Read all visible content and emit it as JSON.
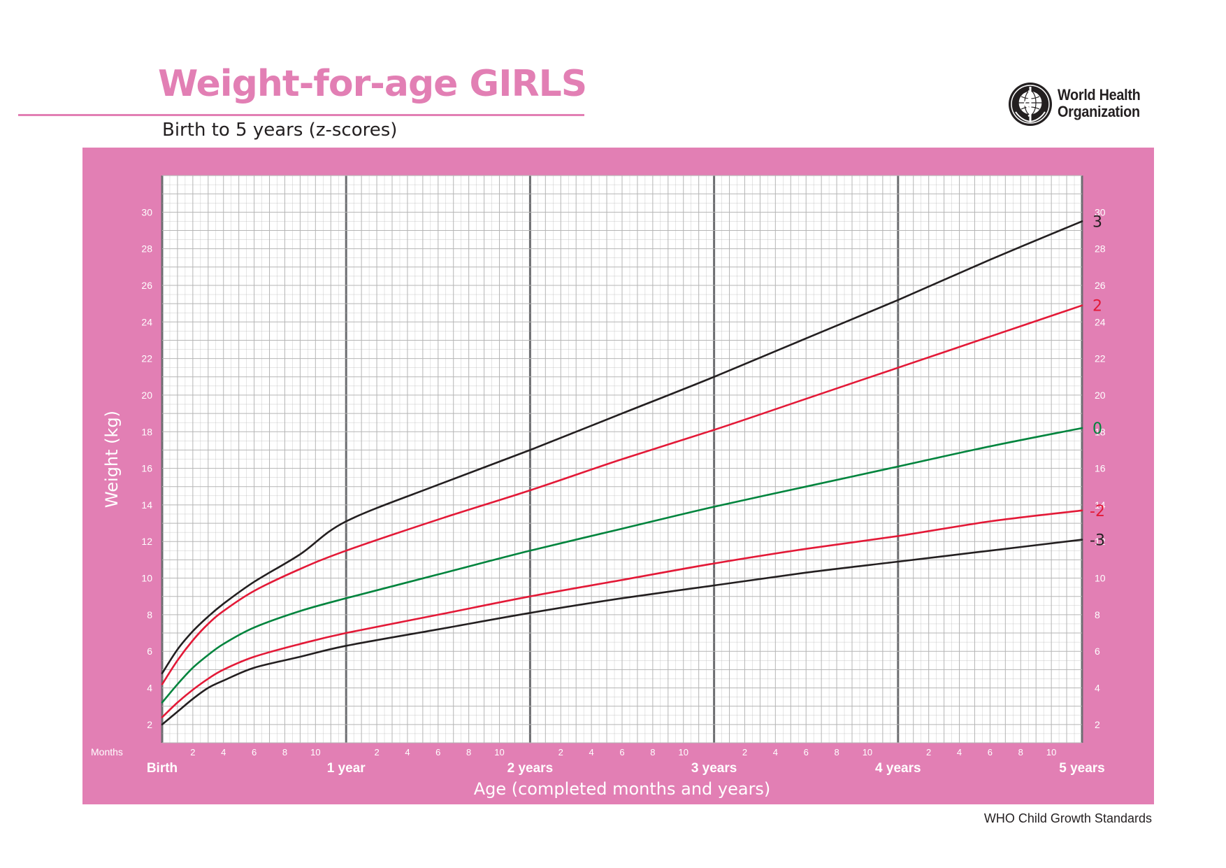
{
  "header": {
    "title": "Weight-for-age GIRLS",
    "subtitle": "Birth to 5 years (z-scores)",
    "organization": "World Health Organization",
    "footer": "WHO Child Growth Standards"
  },
  "colors": {
    "frame": "#e27fb4",
    "brand_pink": "#e27fb4",
    "line_black": "#231f20",
    "line_red": "#e31937",
    "line_green": "#00843d",
    "grid": "#b5b5b5",
    "grid_year": "#6d6e71"
  },
  "icons": {
    "logo": "who-emblem-icon"
  },
  "chart_data": {
    "type": "line",
    "xlabel": "Age (completed months and years)",
    "ylabel": "Weight (kg)",
    "x_unit_label": "Months",
    "xlim": [
      0,
      60
    ],
    "ylim": [
      1,
      32
    ],
    "y_ticks": [
      2,
      4,
      6,
      8,
      10,
      12,
      14,
      16,
      18,
      20,
      22,
      24,
      26,
      28,
      30
    ],
    "x_minor_tick_labels": [
      "2",
      "4",
      "6",
      "8",
      "10"
    ],
    "x_major_labels": [
      "Birth",
      "1 year",
      "2 years",
      "3 years",
      "4 years",
      "5 years"
    ],
    "grid": true,
    "x_months": [
      0,
      1,
      2,
      3,
      4,
      6,
      9,
      12,
      18,
      24,
      30,
      36,
      42,
      48,
      54,
      60
    ],
    "series": [
      {
        "name": "3",
        "color": "black",
        "values": [
          4.8,
          6.1,
          7.1,
          7.9,
          8.6,
          9.8,
          11.3,
          13.1,
          15.1,
          17.0,
          19.0,
          21.0,
          23.1,
          25.2,
          27.4,
          29.5
        ]
      },
      {
        "name": "2",
        "color": "red",
        "values": [
          4.2,
          5.5,
          6.6,
          7.5,
          8.2,
          9.3,
          10.5,
          11.5,
          13.2,
          14.8,
          16.5,
          18.1,
          19.8,
          21.5,
          23.2,
          24.9
        ]
      },
      {
        "name": "0",
        "color": "green",
        "values": [
          3.2,
          4.2,
          5.1,
          5.8,
          6.4,
          7.3,
          8.2,
          8.9,
          10.2,
          11.5,
          12.7,
          13.9,
          15.0,
          16.1,
          17.2,
          18.2
        ]
      },
      {
        "name": "-2",
        "color": "red",
        "values": [
          2.4,
          3.2,
          3.9,
          4.5,
          5.0,
          5.7,
          6.4,
          7.0,
          8.0,
          9.0,
          9.9,
          10.8,
          11.6,
          12.3,
          13.1,
          13.7
        ]
      },
      {
        "name": "-3",
        "color": "black",
        "values": [
          2.0,
          2.7,
          3.4,
          4.0,
          4.4,
          5.1,
          5.7,
          6.3,
          7.2,
          8.1,
          8.9,
          9.6,
          10.3,
          10.9,
          11.5,
          12.1
        ]
      }
    ]
  }
}
